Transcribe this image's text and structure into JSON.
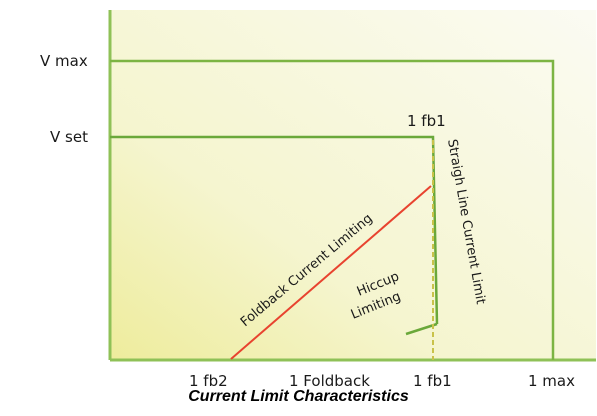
{
  "labels": {
    "v_max": "V max",
    "v_set": "V set",
    "i_fb1_top": "1 fb1",
    "straight_line": "Straigh Line Current Limit",
    "foldback": "Foldback Current Limiting",
    "hiccup_line1": "Hiccup",
    "hiccup_line2": "Limiting"
  },
  "x_ticks": [
    "1 fb2",
    "1 Foldback",
    "1 fb1",
    "1 max"
  ],
  "caption": "Current Limit Characteristics",
  "colors": {
    "green": "#7cb443",
    "red": "#e8432f",
    "dashed_yellow": "#c9c24a",
    "bg_yellow": "#f4f3b8",
    "bg_white": "#fbfbf2"
  }
}
